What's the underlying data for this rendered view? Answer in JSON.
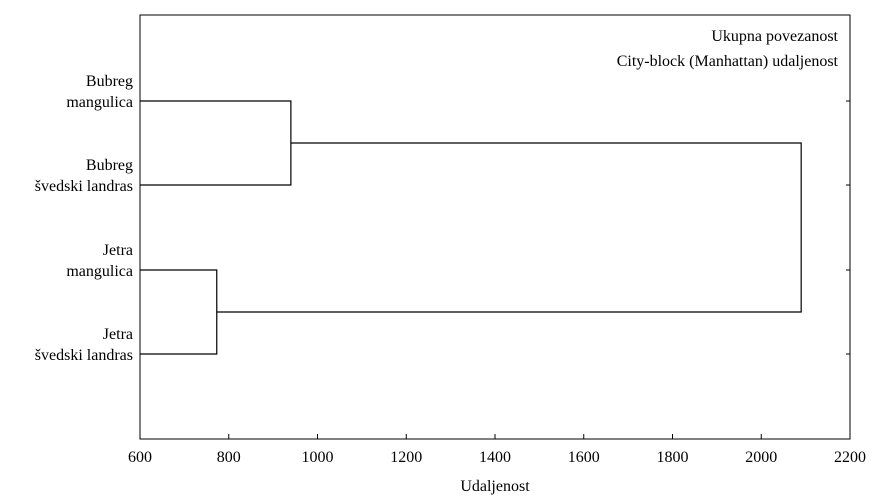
{
  "chart_data": {
    "type": "dendrogram",
    "orientation": "horizontal",
    "xlabel": "Udaljenost",
    "xlim": [
      600,
      2200
    ],
    "xticks": [
      600,
      800,
      1000,
      1200,
      1400,
      1600,
      1800,
      2000,
      2200
    ],
    "xtick_labels": [
      "600",
      "800",
      "1000",
      "1200",
      "1400",
      "1600",
      "1800",
      "2000",
      "2200"
    ],
    "annotations": [
      "Ukupna povezanost",
      "City-block (Manhattan) udaljenost"
    ],
    "leaves": [
      {
        "lines": [
          "Bubreg",
          "mangulica"
        ]
      },
      {
        "lines": [
          "Bubreg",
          "švedski landras"
        ]
      },
      {
        "lines": [
          "Jetra",
          "mangulica"
        ]
      },
      {
        "lines": [
          "Jetra",
          "švedski landras"
        ]
      }
    ],
    "merges": [
      {
        "left": 0,
        "right": 1,
        "distance": 940
      },
      {
        "left": 2,
        "right": 3,
        "distance": 773
      },
      {
        "left": 4,
        "right": 5,
        "distance": 2090
      }
    ],
    "grid": false,
    "link_color": "#000000"
  }
}
